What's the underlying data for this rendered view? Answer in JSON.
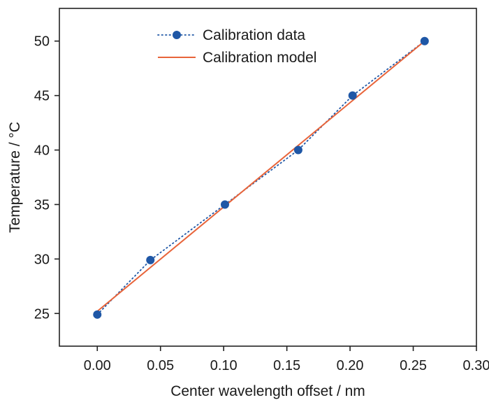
{
  "chart_data": {
    "type": "line",
    "xlabel": "Center wavelength offset / nm",
    "ylabel": "Temperature / °C",
    "xlim": [
      -0.03,
      0.3
    ],
    "ylim": [
      22,
      53
    ],
    "x_ticks": [
      0.0,
      0.05,
      0.1,
      0.15,
      0.2,
      0.25,
      0.3
    ],
    "x_tick_labels": [
      "0.00",
      "0.05",
      "0.10",
      "0.15",
      "0.20",
      "0.25",
      "0.30"
    ],
    "y_ticks": [
      25,
      30,
      35,
      40,
      45,
      50
    ],
    "y_tick_labels": [
      "25",
      "30",
      "35",
      "40",
      "45",
      "50"
    ],
    "grid": false,
    "legend_position": "top-left",
    "series": [
      {
        "name": "Calibration data",
        "style": "dotted-line-with-markers",
        "color": "#1f57a6",
        "x": [
          0.0,
          0.042,
          0.101,
          0.159,
          0.202,
          0.259
        ],
        "y": [
          24.9,
          29.9,
          35.0,
          40.0,
          45.0,
          50.0
        ]
      },
      {
        "name": "Calibration model",
        "style": "solid-line",
        "color": "#e8643a",
        "x": [
          0.0,
          0.259
        ],
        "y": [
          25.2,
          50.0
        ]
      }
    ]
  }
}
